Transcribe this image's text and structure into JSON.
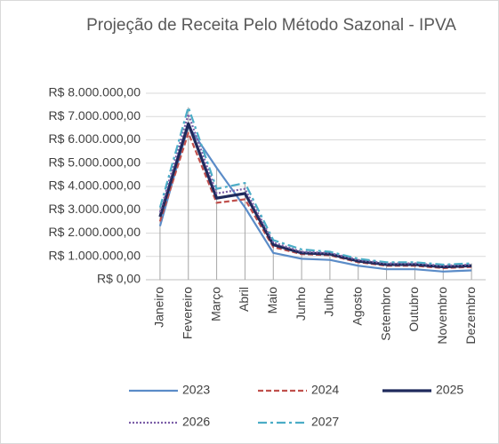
{
  "chart_data": {
    "type": "line",
    "title": "Projeção de Receita Pelo Método Sazonal - IPVA",
    "categories": [
      "Janeiro",
      "Fevereiro",
      "Março",
      "Abril",
      "Maio",
      "Junho",
      "Julho",
      "Agosto",
      "Setembro",
      "Outubro",
      "Novembro",
      "Dezembro"
    ],
    "series": [
      {
        "name": "2023",
        "color": "#5b8cc8",
        "dash": "solid",
        "values": [
          2300000,
          6600000,
          4800000,
          3100000,
          1150000,
          900000,
          850000,
          600000,
          450000,
          450000,
          350000,
          400000
        ]
      },
      {
        "name": "2024",
        "color": "#c0504d",
        "dash": "dashed",
        "values": [
          2500000,
          6300000,
          3300000,
          3450000,
          1400000,
          1100000,
          1050000,
          750000,
          600000,
          600000,
          500000,
          550000
        ]
      },
      {
        "name": "2025",
        "color": "#1f2a5c",
        "dash": "thick",
        "values": [
          2700000,
          6700000,
          3500000,
          3700000,
          1500000,
          1150000,
          1100000,
          800000,
          650000,
          650000,
          550000,
          600000
        ]
      },
      {
        "name": "2026",
        "color": "#7b5ea7",
        "dash": "dotted",
        "values": [
          2900000,
          7100000,
          3700000,
          3900000,
          1600000,
          1200000,
          1150000,
          850000,
          700000,
          700000,
          600000,
          650000
        ]
      },
      {
        "name": "2027",
        "color": "#4bacc6",
        "dash": "dashdot",
        "values": [
          3100000,
          7400000,
          3900000,
          4150000,
          1700000,
          1300000,
          1200000,
          900000,
          750000,
          750000,
          650000,
          700000
        ]
      }
    ],
    "ylim": [
      0,
      8000000
    ],
    "yticks": [
      {
        "value": 0,
        "label": "R$ 0,00"
      },
      {
        "value": 1000000,
        "label": "R$ 1.000.000,00"
      },
      {
        "value": 2000000,
        "label": "R$ 2.000.000,00"
      },
      {
        "value": 3000000,
        "label": "R$ 3.000.000,00"
      },
      {
        "value": 4000000,
        "label": "R$ 4.000.000,00"
      },
      {
        "value": 5000000,
        "label": "R$ 5.000.000,00"
      },
      {
        "value": 6000000,
        "label": "R$ 6.000.000,00"
      },
      {
        "value": 7000000,
        "label": "R$ 7.000.000,00"
      },
      {
        "value": 8000000,
        "label": "R$ 8.000.000,00"
      }
    ],
    "grid": true,
    "drop_lines": true,
    "legend": "bottom"
  }
}
